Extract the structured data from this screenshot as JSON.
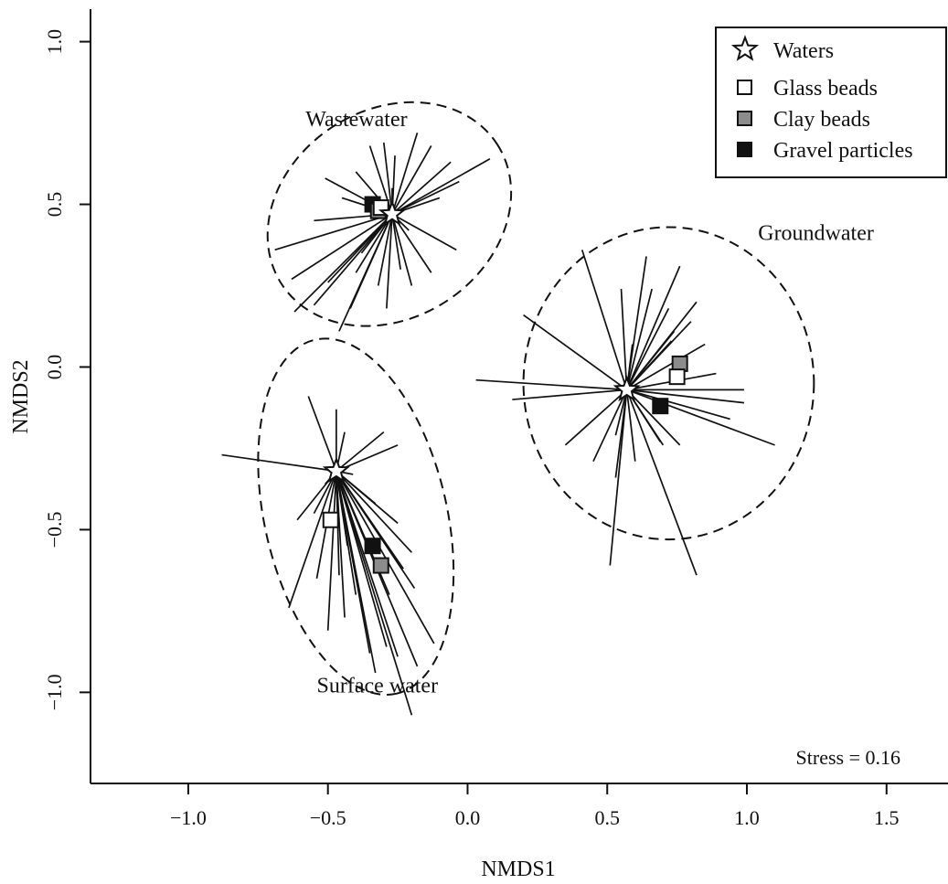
{
  "chart_data": {
    "type": "scatter",
    "title": "",
    "xlabel": "NMDS1",
    "ylabel": "NMDS2",
    "xlim": [
      -1.35,
      1.72
    ],
    "ylim": [
      -1.28,
      1.1
    ],
    "xticks": [
      -1.0,
      -0.5,
      0.0,
      0.5,
      1.0,
      1.5
    ],
    "yticks": [
      -1.0,
      -0.5,
      0.0,
      0.5,
      1.0
    ],
    "xtick_labels": [
      "−1.0",
      "−0.5",
      "0.0",
      "0.5",
      "1.0",
      "1.5"
    ],
    "ytick_labels": [
      "−1.0",
      "−0.5",
      "0.0",
      "0.5",
      "1.0"
    ],
    "grid": false,
    "legend_position": "top-right",
    "legend": [
      {
        "label": "Waters",
        "marker": "star",
        "fill": "#ffffff"
      },
      {
        "label": "Glass beads",
        "marker": "square",
        "fill": "#ffffff"
      },
      {
        "label": "Clay beads",
        "marker": "square",
        "fill": "#8c8c8c"
      },
      {
        "label": "Gravel particles",
        "marker": "square",
        "fill": "#111111"
      }
    ],
    "stress_text": "Stress = 0.16",
    "groups": [
      {
        "name": "Wastewater",
        "ellipse": {
          "cx": -0.28,
          "cy": 0.47,
          "rx": 0.46,
          "ry": 0.32,
          "angle_deg": 33
        },
        "centroids": {
          "Waters": [
            -0.27,
            0.47
          ],
          "Glass beads": [
            -0.31,
            0.49
          ],
          "Clay beads": [
            -0.32,
            0.48
          ],
          "Gravel particles": [
            -0.34,
            0.5
          ]
        },
        "endpoints": [
          [
            -0.69,
            0.36
          ],
          [
            -0.55,
            0.45
          ],
          [
            -0.63,
            0.27
          ],
          [
            -0.5,
            0.26
          ],
          [
            -0.62,
            0.17
          ],
          [
            -0.55,
            0.19
          ],
          [
            -0.46,
            0.11
          ],
          [
            -0.42,
            0.18
          ],
          [
            -0.4,
            0.29
          ],
          [
            -0.32,
            0.25
          ],
          [
            -0.29,
            0.18
          ],
          [
            -0.2,
            0.25
          ],
          [
            -0.13,
            0.29
          ],
          [
            -0.21,
            0.42
          ],
          [
            -0.04,
            0.36
          ],
          [
            -0.3,
            0.69
          ],
          [
            -0.26,
            0.65
          ],
          [
            -0.18,
            0.72
          ],
          [
            -0.13,
            0.68
          ],
          [
            -0.06,
            0.63
          ],
          [
            -0.03,
            0.57
          ],
          [
            0.08,
            0.64
          ],
          [
            -0.35,
            0.68
          ],
          [
            -0.4,
            0.6
          ],
          [
            -0.45,
            0.52
          ],
          [
            -0.51,
            0.58
          ],
          [
            -0.27,
            0.55
          ],
          [
            -0.1,
            0.52
          ],
          [
            -0.38,
            0.35
          ],
          [
            -0.24,
            0.3
          ]
        ]
      },
      {
        "name": "Surface water",
        "ellipse": {
          "cx": -0.4,
          "cy": -0.46,
          "rx": 0.65,
          "ry": 0.28,
          "angle_deg": -77
        },
        "centroids": {
          "Waters": [
            -0.47,
            -0.32
          ],
          "Glass beads": [
            -0.49,
            -0.47
          ],
          "Clay beads": [
            -0.31,
            -0.61
          ],
          "Gravel particles": [
            -0.34,
            -0.55
          ]
        },
        "endpoints": [
          [
            -0.88,
            -0.27
          ],
          [
            -0.64,
            -0.74
          ],
          [
            -0.54,
            -0.65
          ],
          [
            -0.5,
            -0.81
          ],
          [
            -0.44,
            -0.77
          ],
          [
            -0.43,
            -0.55
          ],
          [
            -0.37,
            -0.77
          ],
          [
            -0.35,
            -0.88
          ],
          [
            -0.33,
            -0.94
          ],
          [
            -0.29,
            -0.86
          ],
          [
            -0.25,
            -0.89
          ],
          [
            -0.2,
            -1.07
          ],
          [
            -0.18,
            -0.92
          ],
          [
            -0.12,
            -0.85
          ],
          [
            -0.19,
            -0.68
          ],
          [
            -0.25,
            -0.48
          ],
          [
            -0.25,
            -0.24
          ],
          [
            -0.33,
            -0.42
          ],
          [
            -0.44,
            -0.2
          ],
          [
            -0.47,
            -0.13
          ],
          [
            -0.57,
            -0.09
          ],
          [
            -0.51,
            -0.36
          ],
          [
            -0.55,
            -0.45
          ],
          [
            -0.61,
            -0.47
          ],
          [
            -0.28,
            -0.7
          ],
          [
            -0.41,
            -0.33
          ],
          [
            -0.3,
            -0.2
          ],
          [
            -0.23,
            -0.62
          ],
          [
            -0.46,
            -0.64
          ],
          [
            -0.4,
            -0.7
          ],
          [
            -0.2,
            -0.57
          ]
        ]
      },
      {
        "name": "Groundwater",
        "ellipse": {
          "cx": 0.72,
          "cy": -0.05,
          "rx": 0.52,
          "ry": 0.48,
          "angle_deg": 0
        },
        "centroids": {
          "Waters": [
            0.57,
            -0.07
          ],
          "Glass beads": [
            0.75,
            -0.03
          ],
          "Clay beads": [
            0.76,
            0.01
          ],
          "Gravel particles": [
            0.69,
            -0.12
          ]
        },
        "endpoints": [
          [
            0.03,
            -0.04
          ],
          [
            0.16,
            -0.1
          ],
          [
            0.2,
            0.16
          ],
          [
            0.41,
            0.36
          ],
          [
            0.51,
            -0.61
          ],
          [
            0.53,
            -0.34
          ],
          [
            0.35,
            -0.24
          ],
          [
            0.55,
            0.24
          ],
          [
            0.6,
            -0.29
          ],
          [
            0.64,
            0.34
          ],
          [
            0.72,
            0.18
          ],
          [
            0.76,
            0.31
          ],
          [
            0.8,
            0.14
          ],
          [
            0.82,
            0.2
          ],
          [
            0.85,
            0.07
          ],
          [
            0.89,
            -0.02
          ],
          [
            0.99,
            -0.07
          ],
          [
            1.1,
            -0.24
          ],
          [
            0.94,
            -0.16
          ],
          [
            0.82,
            -0.64
          ],
          [
            0.76,
            -0.24
          ],
          [
            0.69,
            -0.23
          ],
          [
            0.45,
            -0.29
          ],
          [
            0.66,
            0.24
          ],
          [
            0.59,
            0.07
          ],
          [
            0.74,
            0.11
          ],
          [
            0.7,
            -0.24
          ],
          [
            0.53,
            -0.21
          ],
          [
            0.99,
            -0.11
          ],
          [
            0.73,
            0.08
          ]
        ]
      }
    ]
  }
}
